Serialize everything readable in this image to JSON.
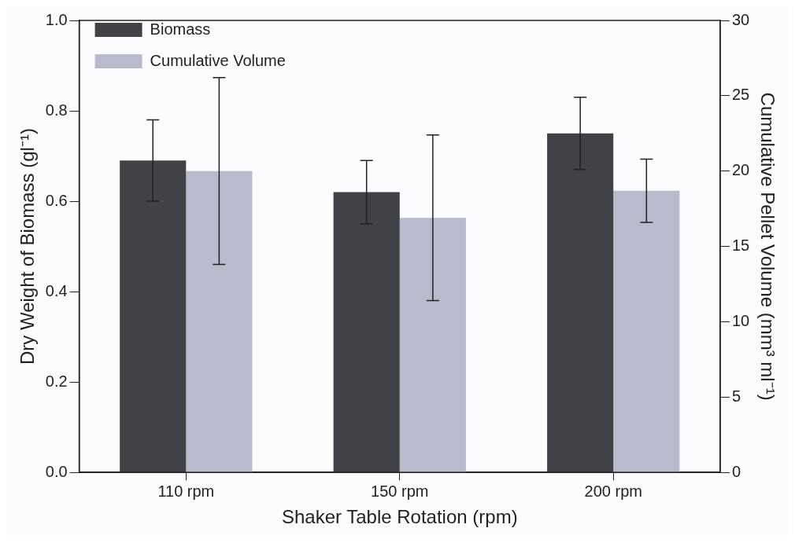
{
  "chart_data": {
    "type": "bar",
    "xlabel": "Shaker Table Rotation (rpm)",
    "ylabel": "Dry Weight of Biomass (gl⁻¹)",
    "y2label": "Cumulative Pellet Volume (mm³ ml⁻¹)",
    "categories": [
      "110 rpm",
      "150 rpm",
      "200 rpm"
    ],
    "series": [
      {
        "name": "Biomass",
        "color": "#3f4347",
        "values": [
          0.69,
          0.62,
          0.75
        ],
        "errors": [
          0.09,
          0.07,
          0.08
        ]
      },
      {
        "name": "Cumulative Volume",
        "color": "#b7bbcb",
        "axis": "y2",
        "values": [
          20.0,
          16.9,
          18.7
        ],
        "errors": [
          6.2,
          5.5,
          2.1
        ]
      }
    ],
    "ylim": [
      0,
      1
    ],
    "yticks": [
      {
        "value": 0,
        "label": "0.0"
      },
      {
        "value": 0.2,
        "label": "0.2"
      },
      {
        "value": 0.4,
        "label": "0.4"
      },
      {
        "value": 0.6,
        "label": "0.6"
      },
      {
        "value": 0.8,
        "label": "0.8"
      },
      {
        "value": 1,
        "label": "1.0"
      }
    ],
    "y2lim": [
      0,
      30
    ],
    "y2ticks": [
      0,
      5,
      10,
      15,
      20,
      25,
      30
    ],
    "legend": "top left",
    "grid": false
  }
}
